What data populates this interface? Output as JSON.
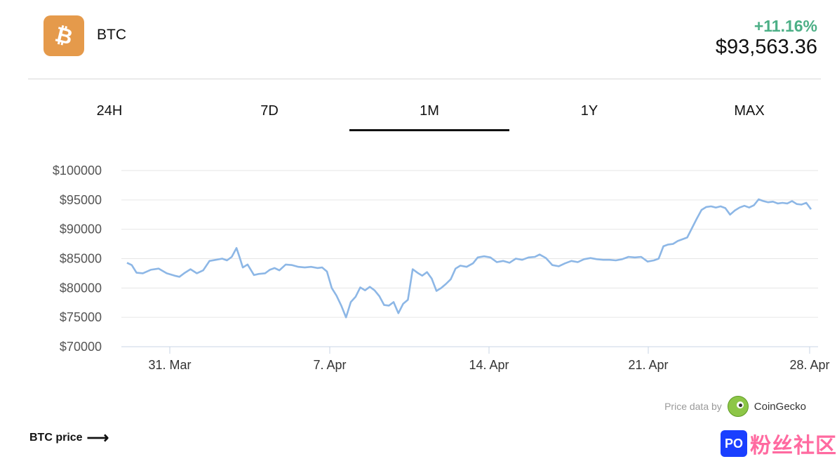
{
  "coin": {
    "name": "BTC",
    "icon": "bitcoin-icon",
    "icon_color": "#e59a4b"
  },
  "price": {
    "change": "+11.16%",
    "value": "$93,563.36",
    "change_color": "#4caf86"
  },
  "tabs": [
    "24H",
    "7D",
    "1M",
    "1Y",
    "MAX"
  ],
  "active_tab": "1M",
  "chart_data": {
    "type": "line",
    "line_color": "#8db7e6",
    "grid": true,
    "ylim": [
      70000,
      100000
    ],
    "y_ticks": [
      "$100000",
      "$95000",
      "$90000",
      "$85000",
      "$80000",
      "$75000",
      "$70000"
    ],
    "x_ticks": [
      "31. Mar",
      "7. Apr",
      "14. Apr",
      "21. Apr",
      "28. Apr"
    ],
    "x_range_days": [
      "28. Mar",
      "28. Apr"
    ],
    "series": [
      {
        "points": [
          [
            0.0,
            84300
          ],
          [
            0.3,
            83900
          ],
          [
            0.6,
            82600
          ],
          [
            1.0,
            82500
          ],
          [
            1.5,
            83100
          ],
          [
            2.0,
            83300
          ],
          [
            2.5,
            82500
          ],
          [
            3.0,
            82100
          ],
          [
            3.3,
            81900
          ],
          [
            3.6,
            82500
          ],
          [
            4.0,
            83200
          ],
          [
            4.4,
            82500
          ],
          [
            4.8,
            83000
          ],
          [
            5.2,
            84600
          ],
          [
            5.6,
            84800
          ],
          [
            6.0,
            85000
          ],
          [
            6.3,
            84700
          ],
          [
            6.6,
            85300
          ],
          [
            6.9,
            86800
          ],
          [
            7.1,
            85200
          ],
          [
            7.3,
            83500
          ],
          [
            7.6,
            84000
          ],
          [
            8.0,
            82200
          ],
          [
            8.3,
            82400
          ],
          [
            8.7,
            82500
          ],
          [
            9.0,
            83100
          ],
          [
            9.3,
            83400
          ],
          [
            9.6,
            83000
          ],
          [
            10.0,
            84000
          ],
          [
            10.4,
            83900
          ],
          [
            10.8,
            83600
          ],
          [
            11.2,
            83500
          ],
          [
            11.6,
            83600
          ],
          [
            12.0,
            83400
          ],
          [
            12.3,
            83500
          ],
          [
            12.6,
            82800
          ],
          [
            12.9,
            80000
          ],
          [
            13.2,
            78700
          ],
          [
            13.5,
            77000
          ],
          [
            13.8,
            75000
          ],
          [
            14.1,
            77600
          ],
          [
            14.4,
            78500
          ],
          [
            14.7,
            80100
          ],
          [
            15.0,
            79600
          ],
          [
            15.3,
            80200
          ],
          [
            15.6,
            79600
          ],
          [
            15.9,
            78600
          ],
          [
            16.2,
            77100
          ],
          [
            16.5,
            77000
          ],
          [
            16.8,
            77600
          ],
          [
            17.1,
            75700
          ],
          [
            17.4,
            77300
          ],
          [
            17.7,
            78000
          ],
          [
            18.0,
            83200
          ],
          [
            18.3,
            82600
          ],
          [
            18.6,
            82100
          ],
          [
            18.9,
            82700
          ],
          [
            19.2,
            81600
          ],
          [
            19.5,
            79500
          ],
          [
            19.8,
            80000
          ],
          [
            20.1,
            80700
          ],
          [
            20.4,
            81500
          ],
          [
            20.7,
            83300
          ],
          [
            21.0,
            83800
          ],
          [
            21.4,
            83600
          ],
          [
            21.8,
            84200
          ],
          [
            22.1,
            85200
          ],
          [
            22.5,
            85400
          ],
          [
            22.9,
            85200
          ],
          [
            23.3,
            84400
          ],
          [
            23.7,
            84600
          ],
          [
            24.1,
            84300
          ],
          [
            24.5,
            85000
          ],
          [
            24.9,
            84800
          ],
          [
            25.3,
            85200
          ],
          [
            25.7,
            85300
          ],
          [
            26.0,
            85700
          ],
          [
            26.4,
            85100
          ],
          [
            26.8,
            83900
          ],
          [
            27.2,
            83700
          ],
          [
            27.6,
            84200
          ],
          [
            28.0,
            84600
          ],
          [
            28.4,
            84400
          ],
          [
            28.8,
            84900
          ],
          [
            29.2,
            85100
          ],
          [
            29.6,
            84900
          ],
          [
            30.0,
            84800
          ],
          [
            30.4,
            84800
          ],
          [
            30.8,
            84700
          ],
          [
            31.2,
            84900
          ],
          [
            31.6,
            85300
          ],
          [
            32.0,
            85200
          ],
          [
            32.4,
            85300
          ],
          [
            32.8,
            84500
          ],
          [
            33.2,
            84700
          ],
          [
            33.5,
            85000
          ],
          [
            33.8,
            87100
          ],
          [
            34.1,
            87400
          ],
          [
            34.4,
            87500
          ],
          [
            34.7,
            88000
          ],
          [
            35.0,
            88300
          ],
          [
            35.3,
            88600
          ],
          [
            35.6,
            90200
          ],
          [
            35.9,
            91800
          ],
          [
            36.2,
            93300
          ],
          [
            36.5,
            93800
          ],
          [
            36.8,
            93900
          ],
          [
            37.1,
            93700
          ],
          [
            37.4,
            93900
          ],
          [
            37.7,
            93600
          ],
          [
            38.0,
            92500
          ],
          [
            38.3,
            93200
          ],
          [
            38.6,
            93700
          ],
          [
            38.9,
            94000
          ],
          [
            39.2,
            93700
          ],
          [
            39.5,
            94100
          ],
          [
            39.8,
            95100
          ],
          [
            40.1,
            94800
          ],
          [
            40.4,
            94600
          ],
          [
            40.7,
            94700
          ],
          [
            41.0,
            94400
          ],
          [
            41.3,
            94500
          ],
          [
            41.6,
            94400
          ],
          [
            41.9,
            94800
          ],
          [
            42.2,
            94300
          ],
          [
            42.5,
            94200
          ],
          [
            42.8,
            94500
          ],
          [
            43.1,
            93400
          ]
        ]
      }
    ]
  },
  "credit": {
    "label": "Price data by",
    "provider": "CoinGecko"
  },
  "footer": {
    "link": "BTC price",
    "arrow": "⟶"
  },
  "watermark": {
    "logo_text": "PO",
    "text": "粉丝社区"
  }
}
